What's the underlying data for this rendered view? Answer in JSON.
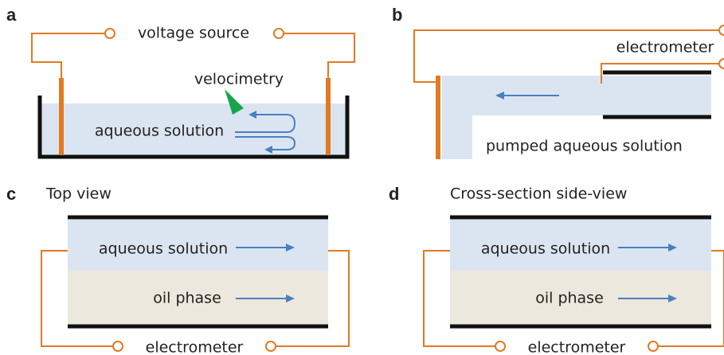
{
  "panels": [
    {
      "label": "a",
      "source": "voltage source",
      "velocimetry": "velocimetry",
      "liquid": "aqueous solution"
    },
    {
      "label": "b",
      "meter": "electrometer",
      "liquid": "pumped aqueous solution"
    },
    {
      "label": "c",
      "title": "Top view",
      "liquid": "aqueous solution",
      "oil": "oil phase",
      "meter": "electrometer"
    },
    {
      "label": "d",
      "title": "Cross-section side-view",
      "liquid": "aqueous solution",
      "oil": "oil phase",
      "meter": "electrometer"
    }
  ]
}
